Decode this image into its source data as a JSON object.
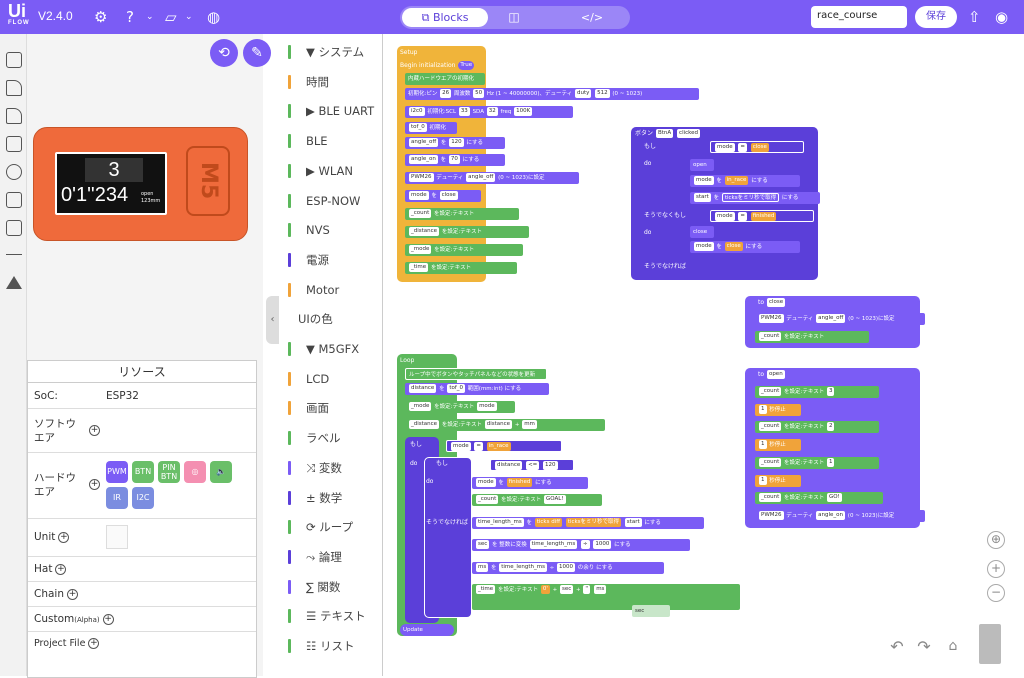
{
  "header": {
    "logo_main": "Ui",
    "logo_sub": "FLOW",
    "version": "V2.4.0",
    "view_blocks": "Blocks",
    "view_code": "</>",
    "project_name": "race_course",
    "save": "保存"
  },
  "sidebar": {
    "icons": [
      "window-icon",
      "tag-icon",
      "tag-user-icon",
      "square-icon",
      "circle-icon",
      "image-icon",
      "images-icon",
      "line-icon",
      "triangle-icon"
    ]
  },
  "device": {
    "screen_top": "3",
    "screen_time": "0'1''234",
    "screen_open": "open",
    "screen_mm": "123mm",
    "brand": "M5"
  },
  "resources": {
    "title": "リソース",
    "soc_label": "SoC:",
    "soc_value": "ESP32",
    "software": "ソフトウエア",
    "hardware": "ハードウエア",
    "hw_items": [
      "PWM",
      "BTN",
      "PIN BTN",
      "",
      "",
      "IR",
      "I2C"
    ],
    "unit": "Unit",
    "hat": "Hat",
    "chain": "Chain",
    "custom": "Custom",
    "custom_sub": "(Alpha)",
    "project_file": "Project File"
  },
  "categories": [
    {
      "label": "▼ システム",
      "color": "#5cb85c"
    },
    {
      "label": "時間",
      "color": "#f0a33a"
    },
    {
      "label": "▶ BLE UART",
      "color": "#5cb85c"
    },
    {
      "label": "BLE",
      "color": "#5cb85c"
    },
    {
      "label": "▶ WLAN",
      "color": "#5cb85c"
    },
    {
      "label": "ESP-NOW",
      "color": "#5cb85c"
    },
    {
      "label": "NVS",
      "color": "#5cb85c"
    },
    {
      "label": "電源",
      "color": "#5b3fd9"
    },
    {
      "label": "Motor",
      "color": "#f0a33a"
    },
    {
      "label": "UIの色",
      "color": "#ffffff"
    },
    {
      "label": "▼ M5GFX",
      "color": "#5cb85c"
    },
    {
      "label": "LCD",
      "color": "#f0a33a"
    },
    {
      "label": "画面",
      "color": "#f0a33a"
    },
    {
      "label": "ラベル",
      "color": "#5cb85c"
    },
    {
      "label": "⤨ 変数",
      "color": "#7b5cf5"
    },
    {
      "label": "± 数学",
      "color": "#5b3fd9"
    },
    {
      "label": "⟳ ループ",
      "color": "#5cb85c"
    },
    {
      "label": "⤳ 論理",
      "color": "#5b3fd9"
    },
    {
      "label": "∑ 関数",
      "color": "#7b5cf5"
    },
    {
      "label": "☰ テキスト",
      "color": "#5cb85c"
    },
    {
      "label": "☷ リスト",
      "color": "#5cb85c"
    }
  ],
  "blocks": {
    "setup_title": "Setup",
    "begin": "Begin initialization",
    "begin_true": "True",
    "hw_init": "内蔵ハードウエアの初期化",
    "pwm_init": "初期化:ピン",
    "pin26": "26",
    "freq_lbl": "周波数",
    "freq50": "50",
    "hz": "Hz (1 ~ 40000000)、デューティ",
    "duty": "duty",
    "duty512": "512",
    "range": "(0 ~ 1023)",
    "i2c": "i2c0",
    "i2c_init": "初期化:SCL",
    "scl": "33",
    "sda_lbl": "SDA",
    "sda": "32",
    "freq": "freq",
    "f100k": "100K",
    "tof": "tof_0",
    "tof_init": "初期化",
    "angle_off": "angle_off",
    "set": "を",
    "v120": "120",
    "suru": "にする",
    "angle_on": "angle_on",
    "v70": "70",
    "pwm26": "PWM26",
    "duty_lbl": "デューティ",
    "pwm_set": "(0 ~ 1023)に設定",
    "mode": "mode",
    "close": "close",
    "count": "_count",
    "distance": "_distance",
    "mode_": "_mode",
    "time": "_time",
    "set_text": "を設定:テキスト",
    "btn_lbl": "ボタン",
    "btnA": "BtnA",
    "clicked": "clicked",
    "if": "もし",
    "do": "do",
    "eq": "=",
    "open": "open",
    "in_race": "in_race",
    "start": "start",
    "ticks": "ticksをミリ秒で取得",
    "finished": "finished",
    "else_if": "そうでなくもし",
    "else": "そうでなければ",
    "to": "to",
    "f_close": "close",
    "f_open": "open",
    "c3": "3",
    "c2": "2",
    "c1": "1",
    "go": "GO!",
    "wait": "秒停止",
    "loop_title": "Loop",
    "loop_update": "ループ中でボタンやタッチパネルなどの状態を更新",
    "dist": "distance",
    "tof0": "tof_0",
    "range_mm": "範囲(mm:int)",
    "mm": "mm",
    "lt": "<=",
    "goal": "GOAL!",
    "tlm": "time_length_ms",
    "ticks_diff": "ticks diff",
    "sec": "sec",
    "int_conv": "整数に変換",
    "v1000": "1000",
    "div": "÷",
    "ms": "ms",
    "mod": "の余り",
    "zero": "0'",
    "q": "''",
    "update": "Update"
  }
}
